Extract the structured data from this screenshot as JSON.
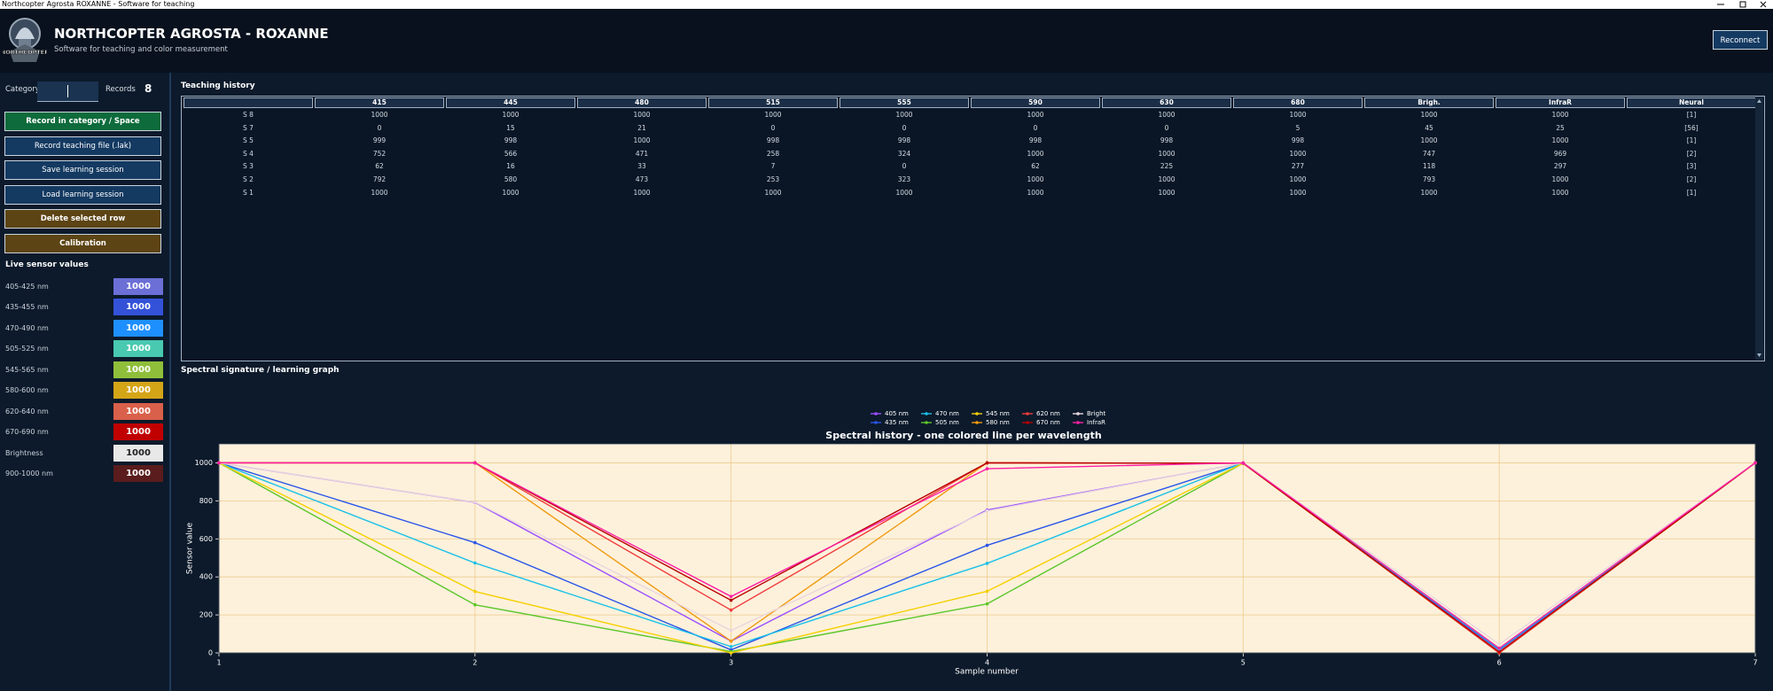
{
  "window": {
    "title": "Northcopter Agrosta ROXANNE - Software for teaching"
  },
  "header": {
    "logo_text": "NORTHCOPTER",
    "title": "NORTHCOPTER AGROSTA - ROXANNE",
    "subtitle": "Software for teaching and color measurement",
    "reconnect": "Reconnect"
  },
  "sidebar": {
    "category_label": "Category",
    "records_label": "Records",
    "records": 8,
    "buttons": [
      "Record in category / Space",
      "Record teaching file (.lak)",
      "Save learning session",
      "Load learning session",
      "Delete selected row",
      "Calibration"
    ],
    "live_title": "Live sensor values",
    "sensors": [
      {
        "label": "405-425 nm",
        "value": 1000,
        "color": "#6b6fd6"
      },
      {
        "label": "435-455 nm",
        "value": 1000,
        "color": "#3352d8"
      },
      {
        "label": "470-490 nm",
        "value": 1000,
        "color": "#1e8fff"
      },
      {
        "label": "505-525 nm",
        "value": 1000,
        "color": "#48c9b0"
      },
      {
        "label": "545-565 nm",
        "value": 1000,
        "color": "#8fbf3a"
      },
      {
        "label": "580-600 nm",
        "value": 1000,
        "color": "#d4a517"
      },
      {
        "label": "620-640 nm",
        "value": 1000,
        "color": "#d9604a"
      },
      {
        "label": "670-690 nm",
        "value": 1000,
        "color": "#c00000"
      },
      {
        "label": "Brightness",
        "value": 1000,
        "color": "#e8e8e8"
      },
      {
        "label": "900-1000 nm",
        "value": 1000,
        "color": "#5a1c1c"
      }
    ]
  },
  "teaching_history": {
    "title": "Teaching history",
    "columns": [
      "415",
      "445",
      "480",
      "515",
      "555",
      "590",
      "630",
      "680",
      "Brigh.",
      "InfraR",
      "Neural"
    ],
    "rows": [
      [
        "S 8",
        1000,
        1000,
        1000,
        1000,
        1000,
        1000,
        1000,
        1000,
        1000,
        1000,
        "[1]"
      ],
      [
        "S 7",
        0,
        15,
        21,
        0,
        0,
        0,
        0,
        5,
        45,
        25,
        "[56]"
      ],
      [
        "S 5",
        999,
        998,
        1000,
        998,
        998,
        998,
        998,
        998,
        1000,
        1000,
        "[1]"
      ],
      [
        "S 4",
        752,
        566,
        471,
        258,
        324,
        1000,
        1000,
        1000,
        747,
        969,
        "[2]"
      ],
      [
        "S 3",
        62,
        16,
        33,
        7,
        0,
        62,
        225,
        277,
        118,
        297,
        "[3]"
      ],
      [
        "S 2",
        792,
        580,
        473,
        253,
        323,
        1000,
        1000,
        1000,
        793,
        1000,
        "[2]"
      ],
      [
        "S 1",
        1000,
        1000,
        1000,
        1000,
        1000,
        1000,
        1000,
        1000,
        1000,
        1000,
        "[1]"
      ]
    ]
  },
  "graph_title": "Spectral signature / learning graph",
  "chart_data": {
    "type": "line",
    "title": "Spectral history - one colored line per wavelength",
    "x_label": "Sample number",
    "y_label": "Sensor value",
    "x": [
      1,
      2,
      3,
      4,
      5,
      6,
      7
    ],
    "xlim": [
      1,
      7
    ],
    "xticks": [
      1,
      2,
      3,
      4,
      5,
      6,
      7
    ],
    "ylim": [
      0,
      1100
    ],
    "yticks": [
      0,
      200,
      400,
      600,
      800,
      1000
    ],
    "grid": true,
    "series": [
      {
        "name": "405 nm",
        "color": "#9b4dff",
        "values": [
          1000,
          792,
          62,
          752,
          999,
          0,
          1000
        ]
      },
      {
        "name": "435 nm",
        "color": "#2a55e8",
        "values": [
          1000,
          580,
          16,
          566,
          998,
          15,
          1000
        ]
      },
      {
        "name": "470 nm",
        "color": "#18c0e8",
        "values": [
          1000,
          473,
          33,
          471,
          1000,
          21,
          1000
        ]
      },
      {
        "name": "505 nm",
        "color": "#5cc62a",
        "values": [
          1000,
          253,
          7,
          258,
          998,
          0,
          1000
        ]
      },
      {
        "name": "545 nm",
        "color": "#f5d000",
        "values": [
          1000,
          323,
          0,
          324,
          998,
          0,
          1000
        ]
      },
      {
        "name": "580 nm",
        "color": "#f09a10",
        "values": [
          1000,
          1000,
          62,
          1000,
          998,
          0,
          1000
        ]
      },
      {
        "name": "620 nm",
        "color": "#f03c3c",
        "values": [
          1000,
          1000,
          225,
          1000,
          998,
          0,
          1000
        ]
      },
      {
        "name": "670 nm",
        "color": "#b80000",
        "values": [
          1000,
          1000,
          277,
          1000,
          998,
          5,
          1000
        ]
      },
      {
        "name": "Bright",
        "color": "#e9d6de",
        "values": [
          1000,
          793,
          118,
          747,
          1000,
          45,
          1000
        ]
      },
      {
        "name": "InfraR",
        "color": "#ff1fa5",
        "values": [
          1000,
          1000,
          297,
          969,
          1000,
          25,
          1000
        ]
      }
    ]
  }
}
